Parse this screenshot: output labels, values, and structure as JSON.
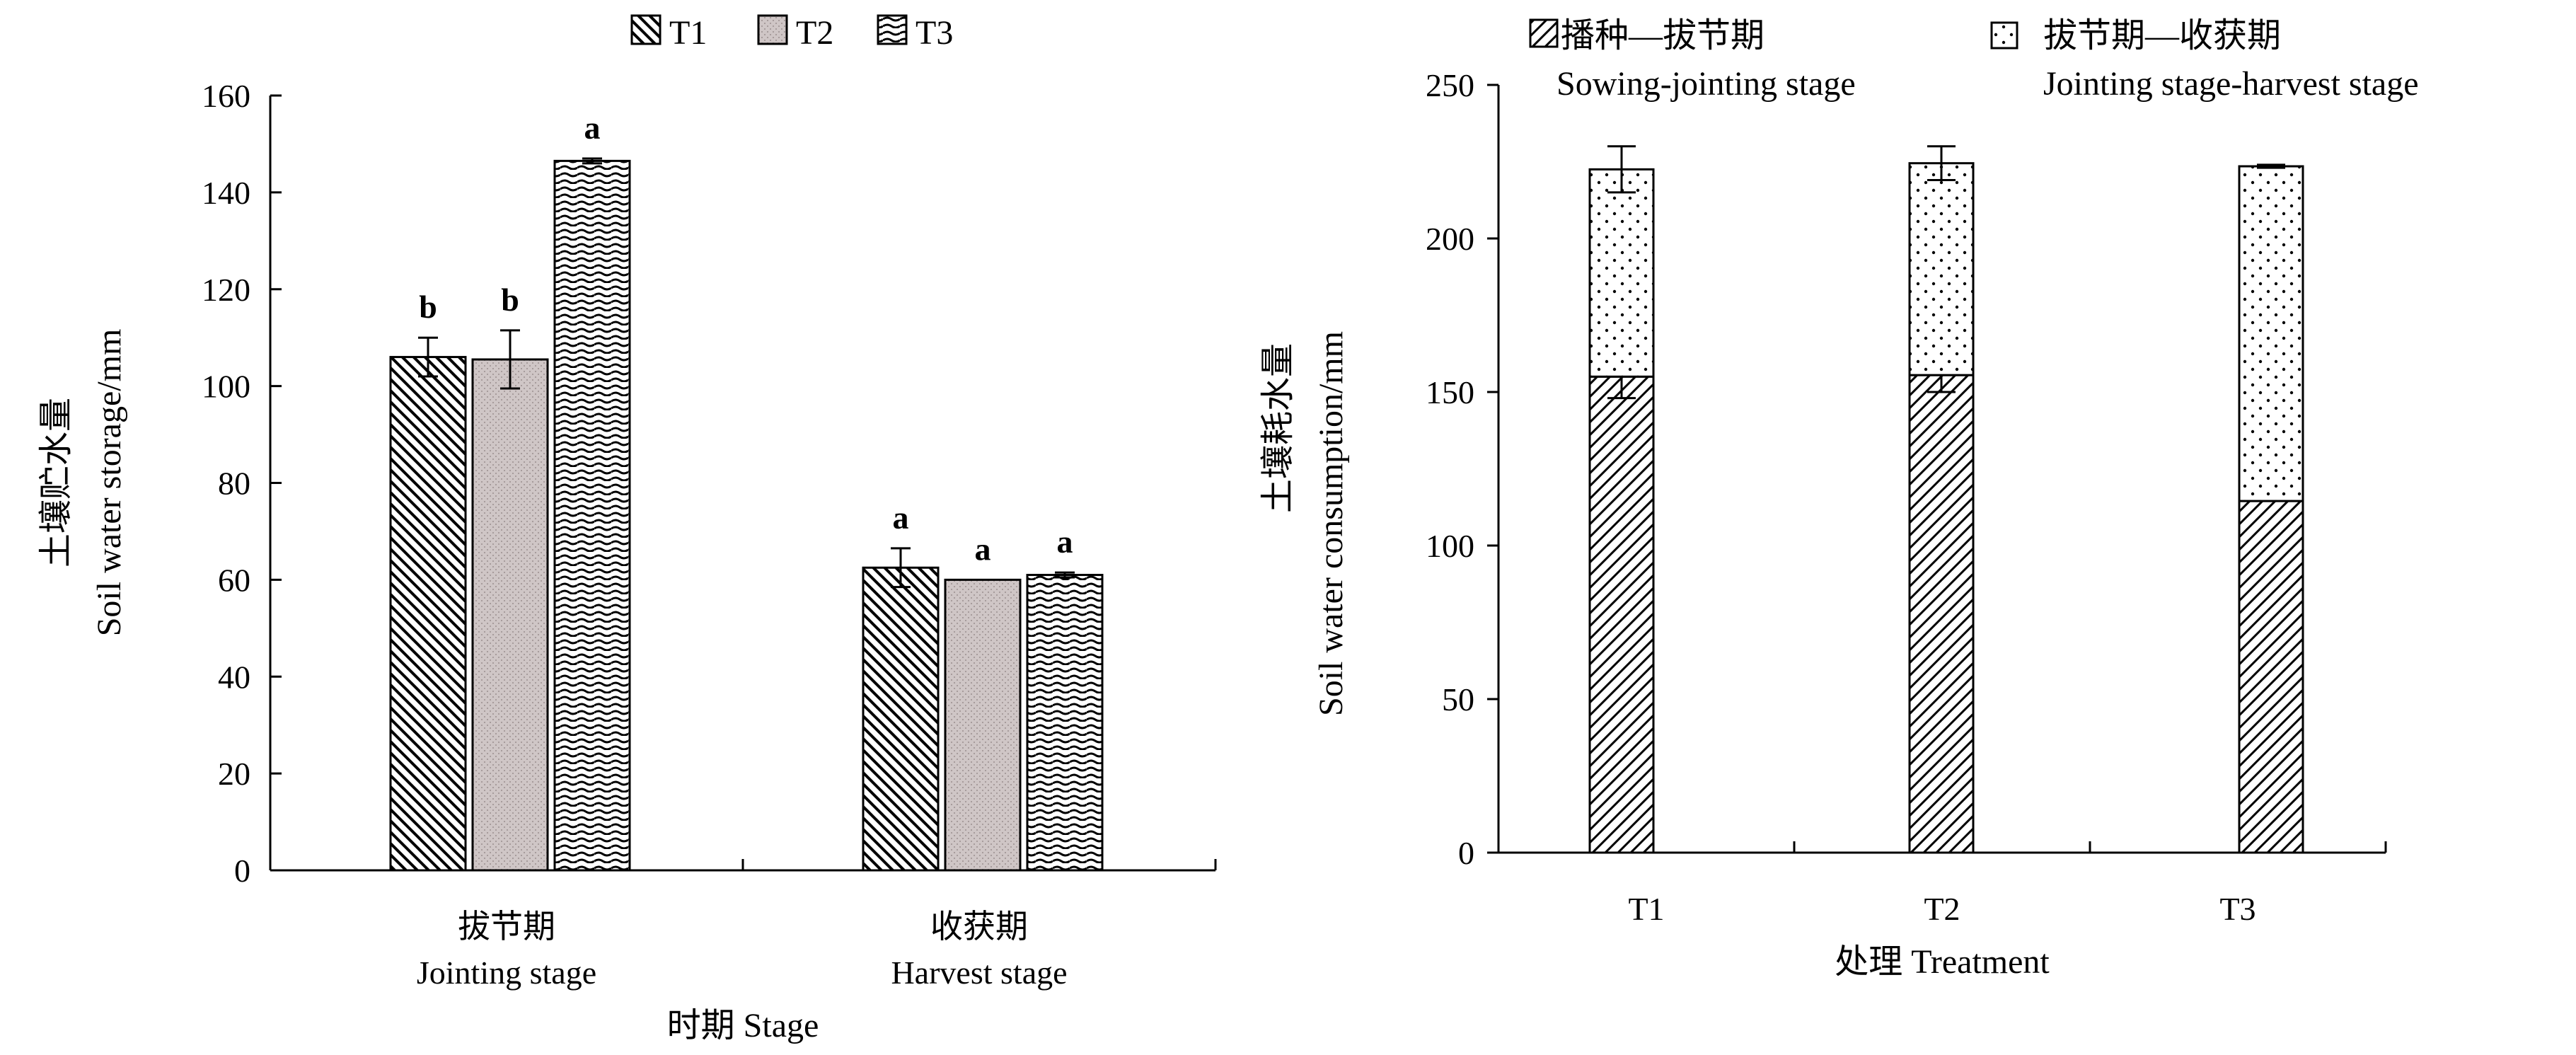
{
  "chart_data": [
    {
      "type": "bar",
      "legend": {
        "position": "top",
        "entries": [
          "T1",
          "T2",
          "T3"
        ]
      },
      "categories": [
        {
          "zh": "拔节期",
          "en": "Jointing stage"
        },
        {
          "zh": "收获期",
          "en": "Harvest stage"
        }
      ],
      "series": [
        {
          "name": "T1",
          "values": [
            106,
            62.5
          ],
          "errors": [
            4,
            4
          ],
          "letters": [
            "b",
            "a"
          ]
        },
        {
          "name": "T2",
          "values": [
            105.5,
            60
          ],
          "errors": [
            6,
            0
          ],
          "letters": [
            "b",
            "a"
          ]
        },
        {
          "name": "T3",
          "values": [
            146.5,
            61
          ],
          "errors": [
            0.5,
            0.5
          ],
          "letters": [
            "a",
            "a"
          ]
        }
      ],
      "xlabel": "时期 Stage",
      "ylabel_zh": "土壤贮水量",
      "ylabel_en": "Soil water storage/mm",
      "ylim": [
        0,
        160
      ],
      "yticks": [
        0,
        20,
        40,
        60,
        80,
        100,
        120,
        140,
        160
      ],
      "grid": false
    },
    {
      "type": "stacked_bar",
      "legend": {
        "position": "top",
        "entries": [
          {
            "zh": "播种—拔节期",
            "en": "Sowing-jointing stage"
          },
          {
            "zh": "拔节期—收获期",
            "en": "Jointing stage-harvest stage"
          }
        ]
      },
      "categories": [
        "T1",
        "T2",
        "T3"
      ],
      "series": [
        {
          "name": "Sowing-jointing stage",
          "values": [
            155,
            155.5,
            114.5
          ],
          "errors": [
            7,
            5.5,
            0
          ]
        },
        {
          "name": "Jointing stage-harvest stage",
          "values": [
            67.5,
            69,
            109
          ],
          "errors": [
            7.5,
            5.5,
            0.5
          ]
        }
      ],
      "xlabel": "处理 Treatment",
      "ylabel_zh": "土壤耗水量",
      "ylabel_en": "Soil water consumption/mm",
      "ylim": [
        0,
        250
      ],
      "yticks": [
        0,
        50,
        100,
        150,
        200,
        250
      ],
      "grid": false
    }
  ]
}
